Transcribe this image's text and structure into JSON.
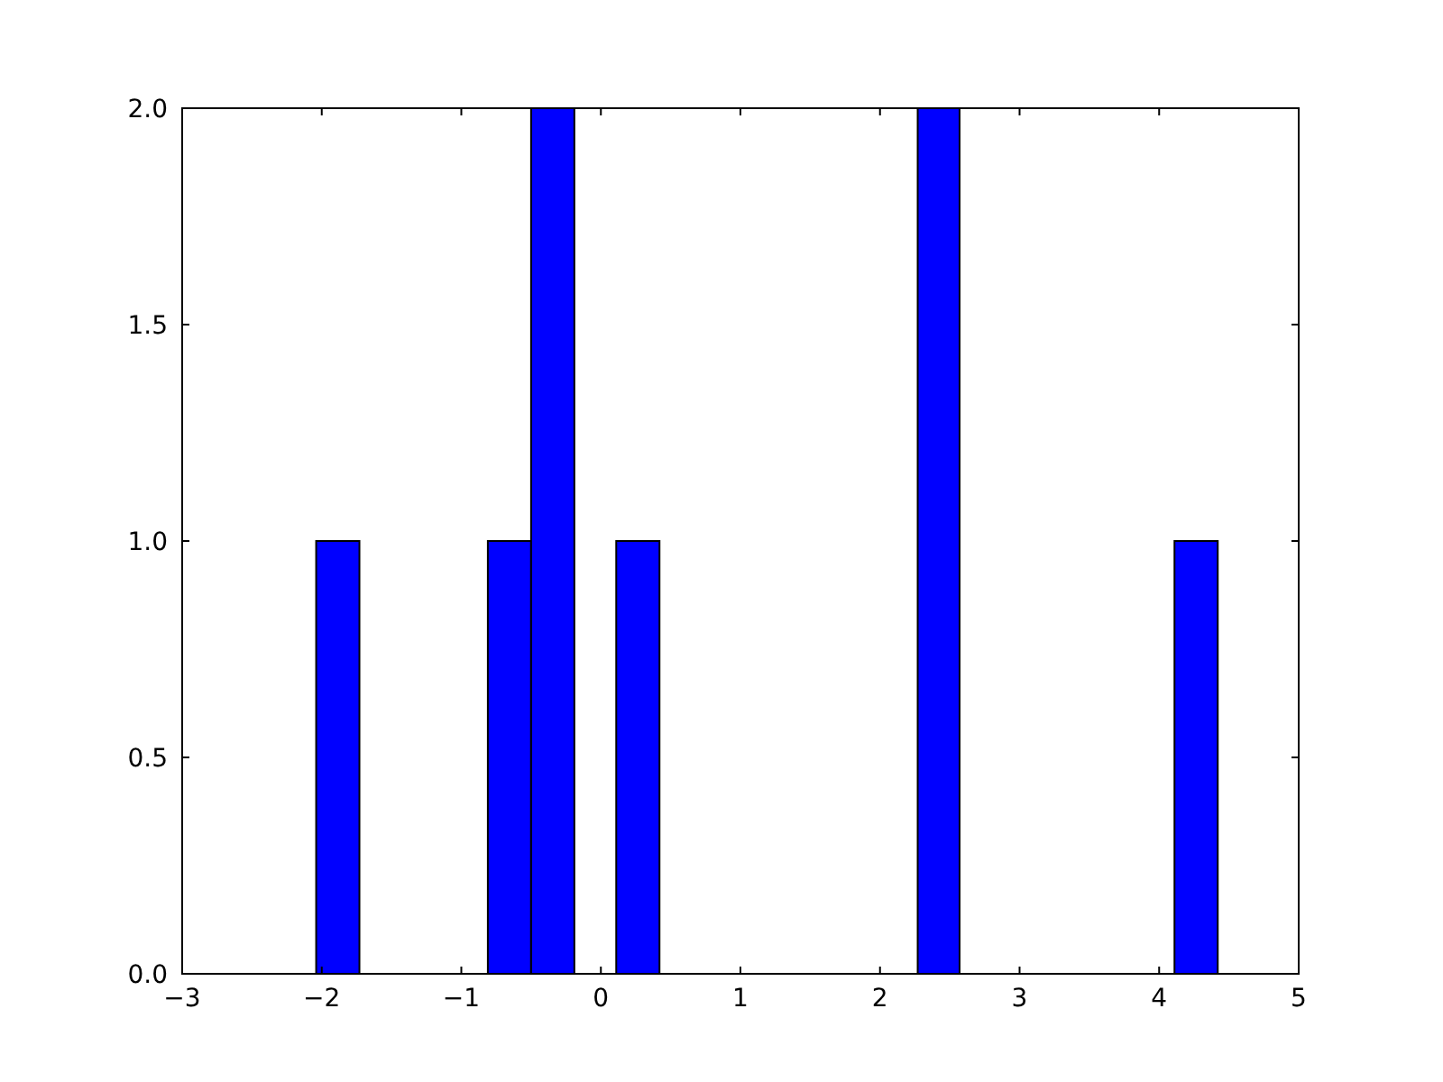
{
  "chart_data": {
    "type": "histogram",
    "bins": [
      -2.04,
      -1.73,
      -0.81,
      -0.5,
      -0.19,
      0.11,
      0.42,
      2.27,
      2.57,
      4.11,
      4.42
    ],
    "values": [
      1,
      0,
      1,
      2,
      0,
      1,
      0,
      2,
      0,
      1
    ],
    "color": "#0000ff",
    "xlim": [
      -3,
      5
    ],
    "xticks": [
      {
        "value": -3,
        "label": "−3"
      },
      {
        "value": -2,
        "label": "−2"
      },
      {
        "value": -1,
        "label": "−1"
      },
      0,
      1,
      2,
      3,
      4,
      5
    ],
    "ylim": [
      0,
      2
    ],
    "yticks": [
      {
        "value": 0,
        "label": "0.0"
      },
      {
        "value": 0.5,
        "label": "0.5"
      },
      {
        "value": 1,
        "label": "1.0"
      },
      {
        "value": 1.5,
        "label": "1.5"
      },
      {
        "value": 2,
        "label": "2.0"
      }
    ],
    "grid": false
  }
}
